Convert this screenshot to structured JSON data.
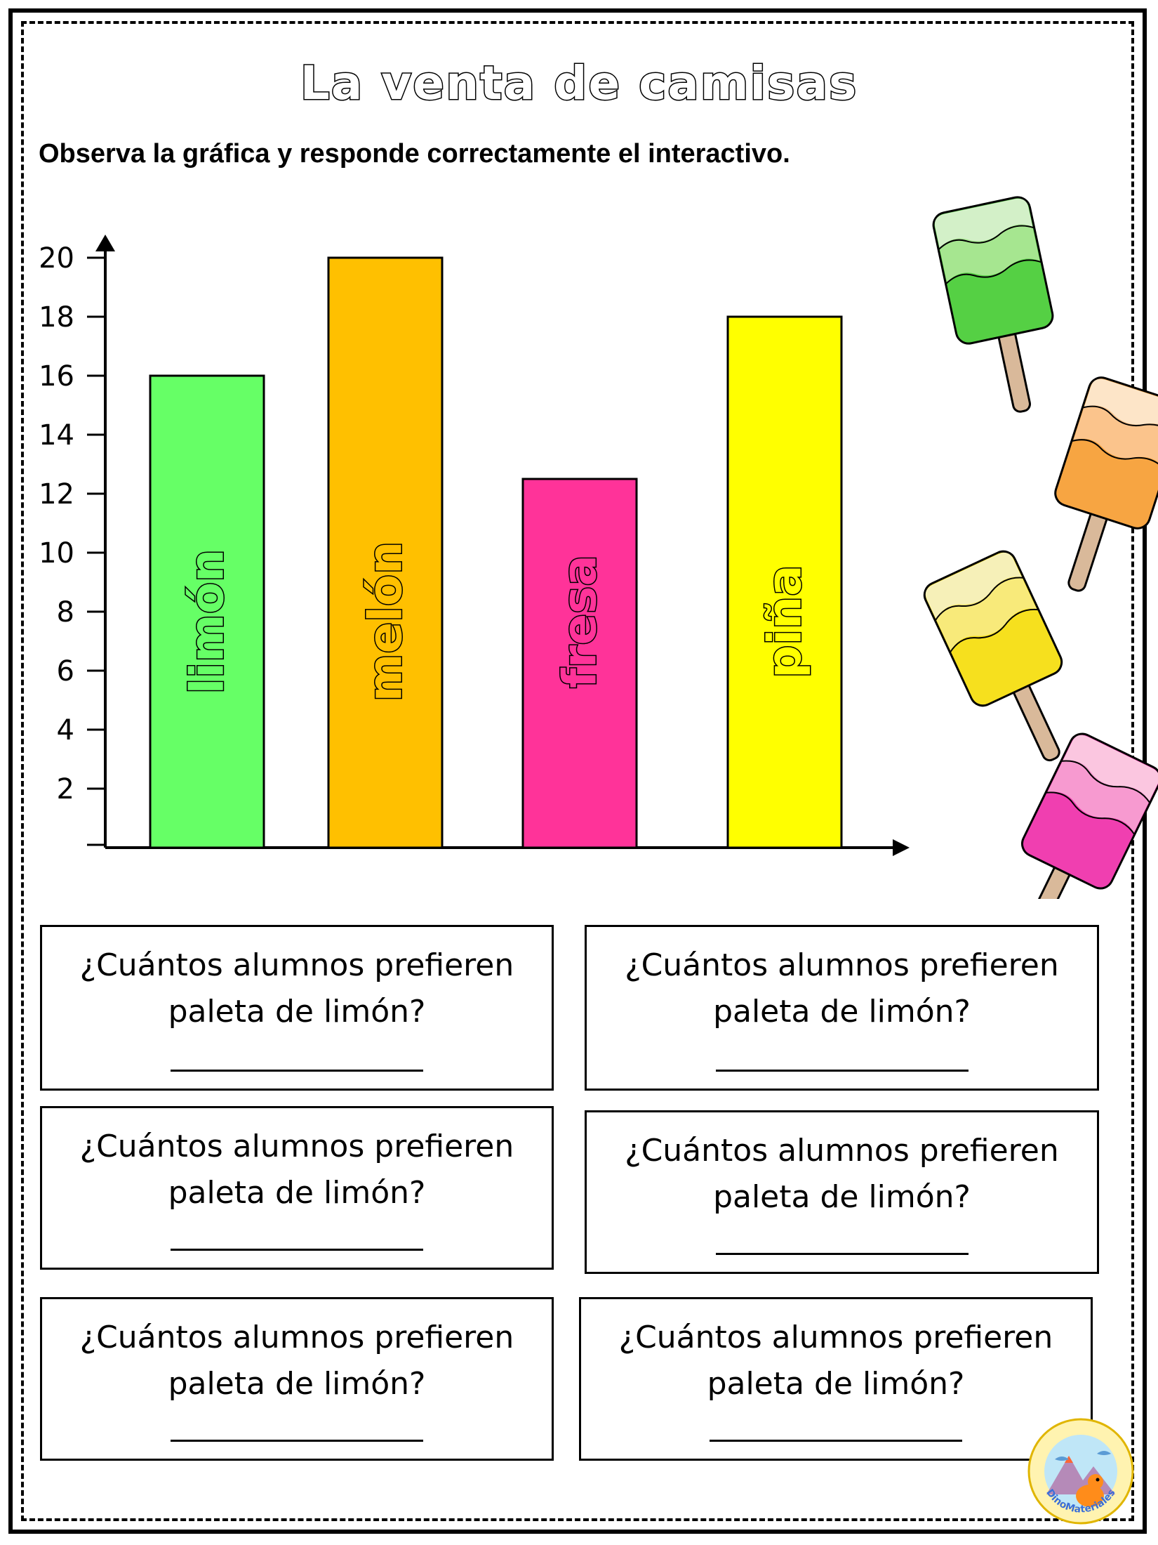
{
  "page": {
    "title": "La venta de camisas",
    "instruction": "Observa la gráfica y responde correctamente el interactivo."
  },
  "chart_data": {
    "type": "bar",
    "categories": [
      "limón",
      "melón",
      "fresa",
      "piña"
    ],
    "values": [
      16,
      20,
      12.5,
      18
    ],
    "colors": [
      "#66ff66",
      "#ffc000",
      "#ff3399",
      "#ffff00"
    ],
    "yticks": [
      2,
      4,
      6,
      8,
      10,
      12,
      14,
      16,
      18,
      20
    ],
    "ylim": [
      0,
      20
    ],
    "title": "",
    "xlabel": "",
    "ylabel": ""
  },
  "questions": [
    {
      "line1": "¿Cuántos alumnos prefieren",
      "line2": "paleta de limón?"
    },
    {
      "line1": "¿Cuántos alumnos prefieren",
      "line2": "paleta de limón?"
    },
    {
      "line1": "¿Cuántos alumnos prefieren",
      "line2": "paleta de limón?"
    },
    {
      "line1": "¿Cuántos alumnos prefieren",
      "line2": "paleta de limón?"
    },
    {
      "line1": "¿Cuántos alumnos prefieren",
      "line2": "paleta de limón?"
    },
    {
      "line1": "¿Cuántos alumnos prefieren",
      "line2": "paleta de limón?"
    }
  ],
  "decorations": {
    "popsicles": [
      {
        "icon": "popsicle-icon",
        "colors": [
          "#d3f0c8",
          "#a6e690",
          "#55d044"
        ]
      },
      {
        "icon": "popsicle-icon",
        "colors": [
          "#fde5c8",
          "#fbc48c",
          "#f7a542"
        ]
      },
      {
        "icon": "popsicle-icon",
        "colors": [
          "#f6f0b8",
          "#f8ea7a",
          "#f6e01e"
        ]
      },
      {
        "icon": "popsicle-icon",
        "colors": [
          "#fbc6e0",
          "#f79ad0",
          "#f03fb0"
        ]
      }
    ],
    "logo_text": "DinoMateriales"
  }
}
